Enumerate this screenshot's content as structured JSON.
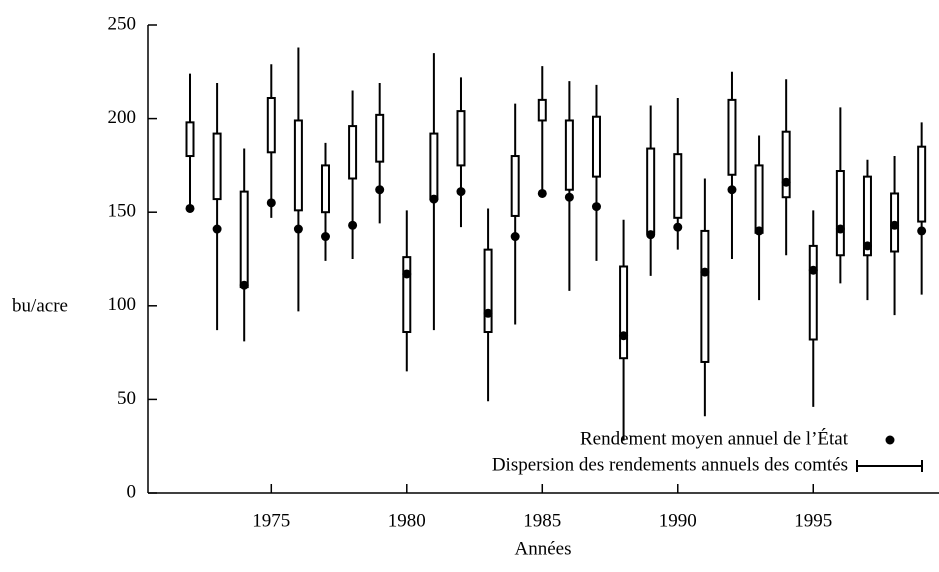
{
  "chart_data": {
    "type": "boxplot",
    "xlabel": "Années",
    "ylabel": "bu/acre",
    "x": [
      1972,
      1973,
      1974,
      1975,
      1976,
      1977,
      1978,
      1979,
      1980,
      1981,
      1982,
      1983,
      1984,
      1985,
      1986,
      1987,
      1988,
      1989,
      1990,
      1991,
      1992,
      1993,
      1994,
      1995,
      1996,
      1997,
      1998,
      1999
    ],
    "mean": {
      "name": "Rendement moyen annuel de l’État",
      "color": "#000000",
      "values": [
        152,
        141,
        111,
        155,
        141,
        137,
        143,
        162,
        117,
        157,
        161,
        96,
        137,
        160,
        158,
        153,
        84,
        138,
        142,
        118,
        162,
        140,
        166,
        119,
        141,
        132,
        143,
        140
      ]
    },
    "dispersion": {
      "name": "Dispersion des rendements annuels des comtés",
      "color": "#000000",
      "low": [
        152,
        87,
        81,
        147,
        97,
        124,
        125,
        144,
        65,
        87,
        142,
        49,
        90,
        160,
        108,
        124,
        28,
        116,
        130,
        41,
        125,
        103,
        127,
        46,
        112,
        103,
        95,
        106
      ],
      "q1": [
        180,
        157,
        110,
        182,
        151,
        150,
        168,
        177,
        86,
        157,
        175,
        86,
        148,
        199,
        162,
        169,
        72,
        139,
        147,
        70,
        170,
        139,
        158,
        82,
        127,
        127,
        129,
        145
      ],
      "q3": [
        198,
        192,
        161,
        211,
        199,
        175,
        196,
        202,
        126,
        192,
        204,
        130,
        180,
        210,
        199,
        201,
        121,
        184,
        181,
        140,
        210,
        175,
        193,
        132,
        172,
        169,
        160,
        185
      ],
      "high": [
        224,
        219,
        184,
        229,
        238,
        187,
        215,
        219,
        151,
        235,
        222,
        152,
        208,
        228,
        220,
        218,
        146,
        207,
        211,
        168,
        225,
        191,
        221,
        151,
        206,
        178,
        180,
        198
      ]
    },
    "xlim": [
      1970.45,
      1999.64
    ],
    "xticks": [
      1975,
      1980,
      1985,
      1990,
      1995
    ],
    "ylim": [
      0,
      250
    ],
    "yticks": [
      0,
      50,
      100,
      150,
      200,
      250
    ],
    "legend": "lower right"
  }
}
